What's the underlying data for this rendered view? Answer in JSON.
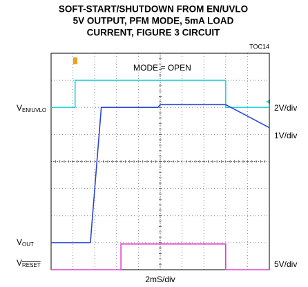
{
  "chart_data": {
    "type": "line",
    "title": [
      "SOFT-START/SHUTDOWN FROM EN/UVLO",
      "5V OUTPUT, PFM MODE, 5mA LOAD",
      "CURRENT, FIGURE 3 CIRCUIT"
    ],
    "figure_id": "TOC14",
    "annotation": "MODE = OPEN",
    "x_label": "2mS/div",
    "xlim": [
      0,
      10
    ],
    "ylim": [
      0,
      8
    ],
    "grid": true,
    "series": [
      {
        "name": "V",
        "subscript": "EN/UVLO",
        "scale": "2V/div",
        "color": "#22d3dc",
        "x": [
          0,
          1.1,
          1.1,
          8.0,
          8.0,
          10
        ],
        "values": [
          6,
          6,
          7,
          7,
          6,
          6
        ]
      },
      {
        "name": "V",
        "subscript": "OUT",
        "scale": "1V/div",
        "color": "#2a44d8",
        "x": [
          0,
          1.8,
          2.3,
          4.9,
          5.0,
          8.0,
          10
        ],
        "values": [
          1,
          1,
          6,
          6,
          6.1,
          6.1,
          5.25
        ]
      },
      {
        "name": "V",
        "subscript": "RESET",
        "overline": true,
        "scale": "5V/div",
        "color": "#e040d0",
        "x": [
          0,
          3.2,
          3.2,
          8.0,
          8.0,
          10
        ],
        "values": [
          0,
          0,
          0.95,
          0.95,
          0,
          0
        ]
      }
    ]
  }
}
